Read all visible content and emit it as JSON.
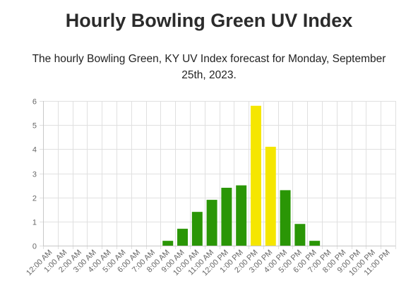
{
  "page": {
    "title": "Hourly Bowling Green UV Index",
    "subtitle": "The hourly Bowling Green, KY UV Index forecast for Monday, September 25th, 2023."
  },
  "colors": {
    "low": "#2a9606",
    "moderate": "#f5e600",
    "grid": "#e0e0e0",
    "axis": "#c8c8c8",
    "tick_text": "#666666"
  },
  "chart_data": {
    "type": "bar",
    "title": "",
    "xlabel": "",
    "ylabel": "",
    "ylim": [
      0,
      6
    ],
    "yticks": [
      0,
      1,
      2,
      3,
      4,
      5,
      6
    ],
    "grid": true,
    "categories": [
      "12:00 AM",
      "1:00 AM",
      "2:00 AM",
      "3:00 AM",
      "4:00 AM",
      "5:00 AM",
      "6:00 AM",
      "7:00 AM",
      "8:00 AM",
      "9:00 AM",
      "10:00 AM",
      "11:00 AM",
      "12:00 PM",
      "1:00 PM",
      "2:00 PM",
      "3:00 PM",
      "4:00 PM",
      "5:00 PM",
      "6:00 PM",
      "7:00 PM",
      "8:00 PM",
      "9:00 PM",
      "10:00 PM",
      "11:00 PM"
    ],
    "values": [
      0,
      0,
      0,
      0,
      0,
      0,
      0,
      0,
      0.2,
      0.7,
      1.4,
      1.9,
      2.4,
      2.5,
      5.8,
      4.1,
      2.3,
      0.9,
      0.2,
      0,
      0,
      0,
      0,
      0
    ],
    "bar_colors": [
      "#2a9606",
      "#2a9606",
      "#2a9606",
      "#2a9606",
      "#2a9606",
      "#2a9606",
      "#2a9606",
      "#2a9606",
      "#2a9606",
      "#2a9606",
      "#2a9606",
      "#2a9606",
      "#2a9606",
      "#2a9606",
      "#f5e600",
      "#f5e600",
      "#2a9606",
      "#2a9606",
      "#2a9606",
      "#2a9606",
      "#2a9606",
      "#2a9606",
      "#2a9606",
      "#2a9606"
    ]
  }
}
